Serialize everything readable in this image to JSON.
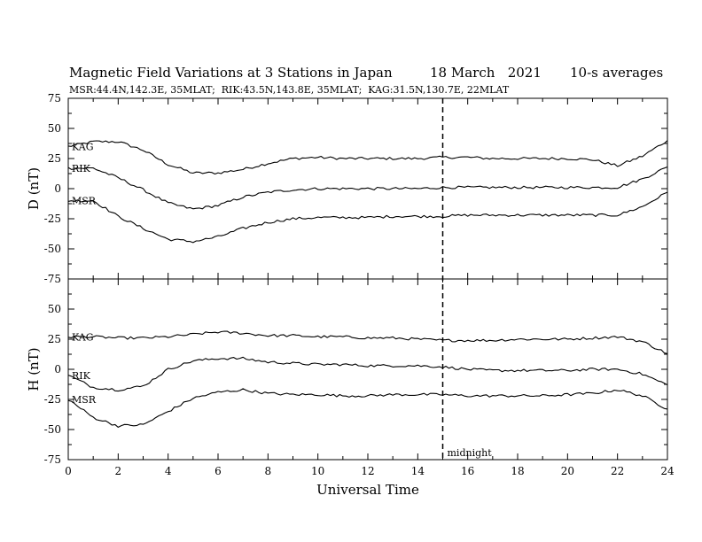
{
  "title": "Magnetic Field Variations at 3 Stations in Japan",
  "date": "18 March   2021",
  "averaging": "10-s averages",
  "subtitle": "MSR:44.4N,142.3E, 35MLAT;  RIK:43.5N,143.8E, 35MLAT;  KAG:31.5N,130.7E, 22MLAT",
  "xlabel": "Universal Time",
  "midnight_label": "midnight",
  "midnight_ut": 15,
  "chart_data": [
    {
      "type": "line",
      "panel": "D",
      "ylabel": "D (nT)",
      "xlim": [
        0,
        24
      ],
      "ylim": [
        -75,
        75
      ],
      "x_ticks": [
        "0",
        "2",
        "4",
        "6",
        "8",
        "10",
        "12",
        "14",
        "16",
        "18",
        "20",
        "22",
        "24"
      ],
      "y_ticks": [
        "75",
        "50",
        "25",
        "0",
        "-25",
        "-50",
        "-75"
      ],
      "x": [
        0,
        1,
        2,
        3,
        4,
        5,
        6,
        7,
        8,
        9,
        10,
        11,
        12,
        13,
        14,
        15,
        16,
        17,
        18,
        19,
        20,
        21,
        22,
        23,
        24
      ],
      "series": [
        {
          "name": "KAG",
          "values": [
            35,
            39,
            39,
            32,
            20,
            13,
            13,
            16,
            21,
            25,
            26,
            25,
            25,
            25,
            25,
            26,
            26,
            25,
            25,
            25,
            25,
            24,
            19,
            27,
            40
          ]
        },
        {
          "name": "RIK",
          "values": [
            17,
            17,
            9,
            -1,
            -12,
            -17,
            -14,
            -7,
            -3,
            -1,
            0,
            0,
            0,
            0,
            0,
            1,
            1,
            1,
            1,
            1,
            1,
            1,
            1,
            8,
            18
          ]
        },
        {
          "name": "MSR",
          "values": [
            -10,
            -10,
            -23,
            -33,
            -42,
            -44,
            -40,
            -33,
            -28,
            -25,
            -24,
            -24,
            -24,
            -23,
            -23,
            -23,
            -22,
            -22,
            -22,
            -22,
            -22,
            -22,
            -22,
            -15,
            -3
          ]
        }
      ]
    },
    {
      "type": "line",
      "panel": "H",
      "ylabel": "H (nT)",
      "xlim": [
        0,
        24
      ],
      "ylim": [
        -75,
        75
      ],
      "x_ticks": [
        "0",
        "2",
        "4",
        "6",
        "8",
        "10",
        "12",
        "14",
        "16",
        "18",
        "20",
        "22",
        "24"
      ],
      "y_ticks": [
        "75",
        "50",
        "25",
        "0",
        "-25",
        "-50",
        "-75"
      ],
      "x": [
        0,
        1,
        2,
        3,
        4,
        5,
        6,
        7,
        8,
        9,
        10,
        11,
        12,
        13,
        14,
        15,
        16,
        17,
        18,
        19,
        20,
        21,
        22,
        23,
        24
      ],
      "series": [
        {
          "name": "KAG",
          "values": [
            27,
            27,
            26,
            26,
            27,
            29,
            31,
            30,
            28,
            28,
            27,
            27,
            26,
            26,
            25,
            24,
            24,
            24,
            25,
            25,
            25,
            26,
            27,
            23,
            13
          ]
        },
        {
          "name": "RIK",
          "values": [
            -5,
            -15,
            -17,
            -14,
            0,
            7,
            9,
            9,
            6,
            5,
            4,
            4,
            3,
            3,
            3,
            2,
            0,
            -1,
            -1,
            -1,
            -1,
            0,
            0,
            -4,
            -13
          ]
        },
        {
          "name": "MSR",
          "values": [
            -25,
            -40,
            -47,
            -46,
            -35,
            -24,
            -19,
            -17,
            -20,
            -21,
            -21,
            -22,
            -22,
            -21,
            -21,
            -21,
            -22,
            -22,
            -22,
            -22,
            -21,
            -20,
            -17,
            -22,
            -33
          ]
        }
      ]
    }
  ]
}
